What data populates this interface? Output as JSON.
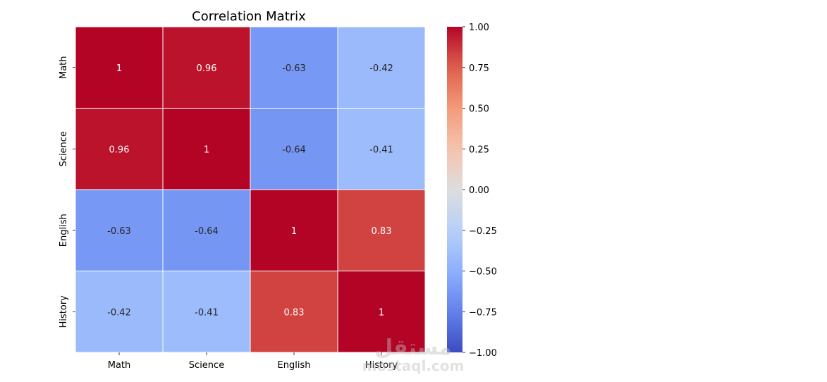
{
  "chart_data": {
    "type": "heatmap",
    "title": "Correlation Matrix",
    "rows": [
      "Math",
      "Science",
      "English",
      "History"
    ],
    "columns": [
      "Math",
      "Science",
      "English",
      "History"
    ],
    "values": [
      [
        1,
        0.96,
        -0.63,
        -0.42
      ],
      [
        0.96,
        1,
        -0.64,
        -0.41
      ],
      [
        -0.63,
        -0.64,
        1,
        0.83
      ],
      [
        -0.42,
        -0.41,
        0.83,
        1
      ]
    ],
    "value_labels": [
      [
        "1",
        "0.96",
        "-0.63",
        "-0.42"
      ],
      [
        "0.96",
        "1",
        "-0.64",
        "-0.41"
      ],
      [
        "-0.63",
        "-0.64",
        "1",
        "0.83"
      ],
      [
        "-0.42",
        "-0.41",
        "0.83",
        "1"
      ]
    ],
    "colormap": "coolwarm",
    "vmin": -1,
    "vmax": 1,
    "colorbar_ticks": [
      1.0,
      0.75,
      0.5,
      0.25,
      0.0,
      -0.25,
      -0.5,
      -0.75,
      -1.0
    ],
    "colorbar_tick_labels": [
      "1.00",
      "0.75",
      "0.50",
      "0.25",
      "0.00",
      "−0.25",
      "−0.50",
      "−0.75",
      "−1.00"
    ],
    "colorbar_position": "right",
    "grid": false
  },
  "watermark": {
    "text": "مستقل",
    "subtext": "mostaql.com"
  }
}
